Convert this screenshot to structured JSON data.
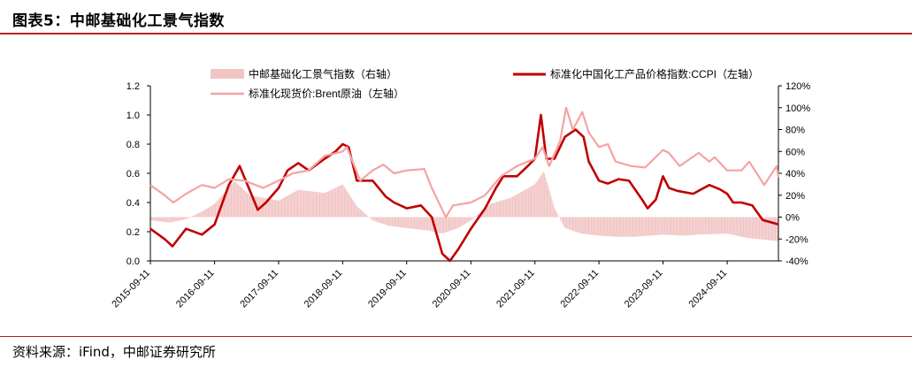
{
  "header": {
    "title": "图表5：中邮基础化工景气指数"
  },
  "footer": {
    "source": "资料来源：iFind，中邮证券研究所"
  },
  "colors": {
    "accent": "#b22222",
    "ccpi": "#c00000",
    "brent": "#f4a3a3",
    "prosperity": "#f2c4c4"
  },
  "chart_data": {
    "type": "line",
    "title": "",
    "x_ticks": [
      "2015-09-11",
      "2016-09-11",
      "2017-09-11",
      "2018-09-11",
      "2019-09-11",
      "2020-09-11",
      "2021-09-11",
      "2022-09-11",
      "2023-09-11",
      "2024-09-11"
    ],
    "x_range": [
      "2015-09-11",
      "2025-06-30"
    ],
    "y_left": {
      "min": 0.0,
      "max": 1.2,
      "ticks": [
        "0.0",
        "0.2",
        "0.4",
        "0.6",
        "0.8",
        "1.0",
        "1.2"
      ]
    },
    "y_right": {
      "min": -40,
      "max": 120,
      "unit": "%",
      "ticks": [
        "-40%",
        "-20%",
        "0%",
        "20%",
        "40%",
        "60%",
        "80%",
        "100%",
        "120%"
      ]
    },
    "legend": {
      "position": "top",
      "items": [
        {
          "label": "中邮基础化工景气指数（右轴）",
          "style": "bar"
        },
        {
          "label": "标准化中国化工产品价格指数:CCPI（左轴）",
          "style": "thick-line"
        },
        {
          "label": "标准化现货价:Brent原油（左轴）",
          "style": "line"
        }
      ]
    },
    "series": [
      {
        "name": "中邮基础化工景气指数（右轴）",
        "axis": "right",
        "type": "bar",
        "points": [
          [
            "2015-09-11",
            -3
          ],
          [
            "2016-01-01",
            -5
          ],
          [
            "2016-04-01",
            -2
          ],
          [
            "2016-07-01",
            5
          ],
          [
            "2016-09-11",
            12
          ],
          [
            "2017-01-01",
            33
          ],
          [
            "2017-04-01",
            20
          ],
          [
            "2017-09-11",
            15
          ],
          [
            "2018-01-01",
            25
          ],
          [
            "2018-06-01",
            22
          ],
          [
            "2018-09-11",
            30
          ],
          [
            "2018-12-01",
            10
          ],
          [
            "2019-03-01",
            -3
          ],
          [
            "2019-06-01",
            -8
          ],
          [
            "2019-09-11",
            -10
          ],
          [
            "2020-01-01",
            -12
          ],
          [
            "2020-04-01",
            -15
          ],
          [
            "2020-07-01",
            -10
          ],
          [
            "2020-09-11",
            -3
          ],
          [
            "2021-01-01",
            12
          ],
          [
            "2021-05-01",
            18
          ],
          [
            "2021-09-11",
            30
          ],
          [
            "2021-11-01",
            42
          ],
          [
            "2022-01-01",
            8
          ],
          [
            "2022-03-01",
            -10
          ],
          [
            "2022-06-01",
            -15
          ],
          [
            "2022-09-11",
            -17
          ],
          [
            "2023-01-01",
            -18
          ],
          [
            "2023-04-01",
            -18
          ],
          [
            "2023-09-11",
            -16
          ],
          [
            "2024-01-01",
            -17
          ],
          [
            "2024-04-01",
            -16
          ],
          [
            "2024-09-11",
            -15
          ],
          [
            "2025-01-01",
            -19
          ],
          [
            "2025-06-30",
            -22
          ]
        ]
      },
      {
        "name": "标准化中国化工产品价格指数:CCPI（左轴）",
        "axis": "left",
        "type": "line",
        "points": [
          [
            "2015-09-11",
            0.22
          ],
          [
            "2015-12-01",
            0.15
          ],
          [
            "2016-01-15",
            0.1
          ],
          [
            "2016-04-01",
            0.22
          ],
          [
            "2016-07-01",
            0.18
          ],
          [
            "2016-09-11",
            0.25
          ],
          [
            "2016-12-01",
            0.52
          ],
          [
            "2017-02-01",
            0.65
          ],
          [
            "2017-04-01",
            0.48
          ],
          [
            "2017-05-15",
            0.35
          ],
          [
            "2017-07-01",
            0.4
          ],
          [
            "2017-09-11",
            0.5
          ],
          [
            "2017-11-01",
            0.62
          ],
          [
            "2018-01-01",
            0.67
          ],
          [
            "2018-03-01",
            0.62
          ],
          [
            "2018-06-01",
            0.7
          ],
          [
            "2018-08-01",
            0.75
          ],
          [
            "2018-09-11",
            0.8
          ],
          [
            "2018-10-15",
            0.78
          ],
          [
            "2018-12-01",
            0.55
          ],
          [
            "2019-03-01",
            0.55
          ],
          [
            "2019-05-15",
            0.44
          ],
          [
            "2019-07-01",
            0.4
          ],
          [
            "2019-09-11",
            0.36
          ],
          [
            "2019-12-01",
            0.38
          ],
          [
            "2020-02-01",
            0.3
          ],
          [
            "2020-04-01",
            0.05
          ],
          [
            "2020-05-15",
            0.0
          ],
          [
            "2020-07-01",
            0.08
          ],
          [
            "2020-09-11",
            0.22
          ],
          [
            "2020-12-01",
            0.36
          ],
          [
            "2021-02-01",
            0.5
          ],
          [
            "2021-03-15",
            0.58
          ],
          [
            "2021-06-01",
            0.58
          ],
          [
            "2021-08-01",
            0.65
          ],
          [
            "2021-09-11",
            0.7
          ],
          [
            "2021-10-15",
            1.0
          ],
          [
            "2021-11-15",
            0.7
          ],
          [
            "2022-01-01",
            0.7
          ],
          [
            "2022-03-01",
            0.85
          ],
          [
            "2022-05-01",
            0.9
          ],
          [
            "2022-06-15",
            0.85
          ],
          [
            "2022-07-15",
            0.68
          ],
          [
            "2022-09-11",
            0.55
          ],
          [
            "2022-11-01",
            0.53
          ],
          [
            "2023-01-01",
            0.56
          ],
          [
            "2023-03-01",
            0.55
          ],
          [
            "2023-05-15",
            0.42
          ],
          [
            "2023-06-15",
            0.36
          ],
          [
            "2023-08-01",
            0.42
          ],
          [
            "2023-09-11",
            0.58
          ],
          [
            "2023-10-15",
            0.5
          ],
          [
            "2023-12-01",
            0.48
          ],
          [
            "2024-03-01",
            0.46
          ],
          [
            "2024-06-01",
            0.52
          ],
          [
            "2024-08-01",
            0.49
          ],
          [
            "2024-09-11",
            0.46
          ],
          [
            "2024-10-15",
            0.4
          ],
          [
            "2024-12-01",
            0.4
          ],
          [
            "2025-02-01",
            0.38
          ],
          [
            "2025-04-01",
            0.28
          ],
          [
            "2025-06-30",
            0.25
          ]
        ]
      },
      {
        "name": "标准化现货价:Brent原油（左轴）",
        "axis": "left",
        "type": "line",
        "points": [
          [
            "2015-09-11",
            0.52
          ],
          [
            "2015-12-01",
            0.45
          ],
          [
            "2016-01-20",
            0.4
          ],
          [
            "2016-04-01",
            0.46
          ],
          [
            "2016-07-01",
            0.52
          ],
          [
            "2016-09-11",
            0.5
          ],
          [
            "2016-12-01",
            0.56
          ],
          [
            "2017-03-01",
            0.55
          ],
          [
            "2017-06-15",
            0.5
          ],
          [
            "2017-09-11",
            0.55
          ],
          [
            "2017-12-01",
            0.6
          ],
          [
            "2018-03-01",
            0.62
          ],
          [
            "2018-06-01",
            0.72
          ],
          [
            "2018-09-11",
            0.75
          ],
          [
            "2018-10-05",
            0.78
          ],
          [
            "2018-12-20",
            0.55
          ],
          [
            "2019-03-01",
            0.62
          ],
          [
            "2019-05-01",
            0.66
          ],
          [
            "2019-07-01",
            0.6
          ],
          [
            "2019-09-11",
            0.62
          ],
          [
            "2019-12-20",
            0.63
          ],
          [
            "2020-02-01",
            0.5
          ],
          [
            "2020-04-21",
            0.3
          ],
          [
            "2020-06-01",
            0.38
          ],
          [
            "2020-09-11",
            0.4
          ],
          [
            "2020-12-01",
            0.45
          ],
          [
            "2021-03-01",
            0.58
          ],
          [
            "2021-06-01",
            0.65
          ],
          [
            "2021-09-11",
            0.7
          ],
          [
            "2021-10-25",
            0.78
          ],
          [
            "2021-12-01",
            0.65
          ],
          [
            "2022-02-01",
            0.82
          ],
          [
            "2022-03-08",
            1.05
          ],
          [
            "2022-04-15",
            0.9
          ],
          [
            "2022-06-08",
            1.02
          ],
          [
            "2022-07-15",
            0.88
          ],
          [
            "2022-09-11",
            0.78
          ],
          [
            "2022-11-01",
            0.8
          ],
          [
            "2022-12-15",
            0.68
          ],
          [
            "2023-03-15",
            0.65
          ],
          [
            "2023-06-01",
            0.64
          ],
          [
            "2023-09-11",
            0.76
          ],
          [
            "2023-10-15",
            0.74
          ],
          [
            "2023-12-15",
            0.65
          ],
          [
            "2024-04-01",
            0.74
          ],
          [
            "2024-06-01",
            0.68
          ],
          [
            "2024-07-01",
            0.71
          ],
          [
            "2024-09-11",
            0.62
          ],
          [
            "2024-12-01",
            0.62
          ],
          [
            "2025-01-15",
            0.68
          ],
          [
            "2025-04-10",
            0.52
          ],
          [
            "2025-06-20",
            0.65
          ],
          [
            "2025-06-30",
            0.57
          ]
        ]
      }
    ]
  }
}
